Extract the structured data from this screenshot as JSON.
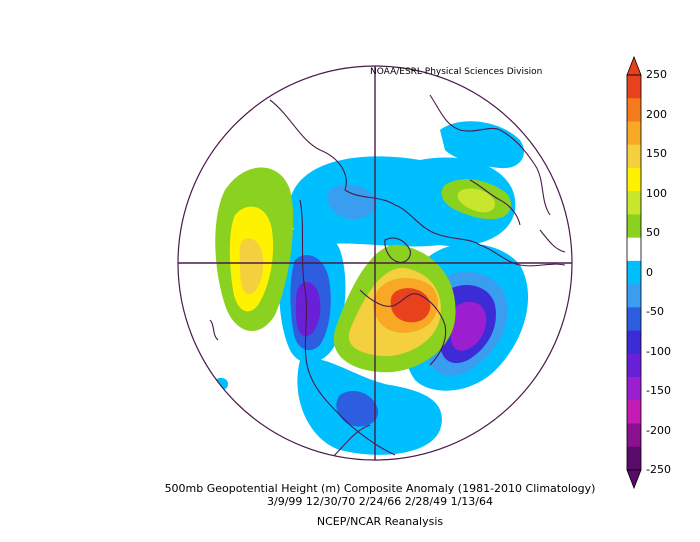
{
  "credit": "NOAA/ESRL Physical Sciences Division",
  "caption": {
    "line1": "500mb Geopotential Height (m) Composite Anomaly (1981-2010 Climatology)",
    "line2": "3/9/99 12/30/70 2/24/66 2/28/49 1/13/64",
    "line3": "NCEP/NCAR Reanalysis"
  },
  "colorbar": {
    "labels": [
      "250",
      "200",
      "150",
      "100",
      "50",
      "0",
      "-50",
      "-100",
      "-150",
      "-200",
      "-250"
    ],
    "colors": [
      "#e8421c",
      "#f57a1c",
      "#f9a825",
      "#f4d03f",
      "#fff200",
      "#c8e62c",
      "#8bd11f",
      "#ffffff",
      "#00bfff",
      "#3a9ef0",
      "#2e5ee0",
      "#3d2bd6",
      "#6a20d6",
      "#9b1fd0",
      "#c41bb4",
      "#8a1090",
      "#5a0a6a"
    ],
    "top_color": "#e8421c",
    "bottom_color": "#5a0a6a"
  }
}
